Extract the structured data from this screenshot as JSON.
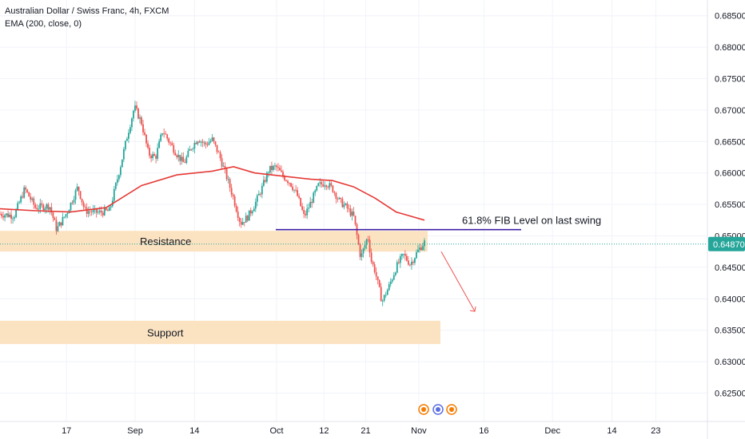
{
  "legend": {
    "title": "Australian Dollar / Swiss Franc, 4h, FXCM",
    "indicator": "EMA (200, close, 0)"
  },
  "colors": {
    "up": "#26a69a",
    "down": "#ef5350",
    "ema": "#e53935",
    "fib_line": "#3f1fa6",
    "zone": "#fbe3c2",
    "grid": "#f0f3fa",
    "price_label_bg": "#26a69a",
    "arrow": "#ef5350"
  },
  "chart_data": {
    "type": "candlestick",
    "y_axis": {
      "ticks": [
        0.685,
        0.68,
        0.675,
        0.67,
        0.665,
        0.66,
        0.655,
        0.65,
        0.645,
        0.64,
        0.635,
        0.63,
        0.625
      ],
      "tick_labels": [
        "0.68500",
        "0.68000",
        "0.67500",
        "0.67000",
        "0.66500",
        "0.66000",
        "0.65500",
        "0.65000",
        "0.64500",
        "0.64000",
        "0.63500",
        "0.63000",
        "0.62500"
      ],
      "range": [
        0.6205,
        0.6875
      ],
      "position": "right"
    },
    "x_axis": {
      "labels": [
        "17",
        "Sep",
        "14",
        "Oct",
        "12",
        "21",
        "Nov",
        "16",
        "Dec",
        "14",
        "23"
      ],
      "label_fraction": [
        0.094,
        0.191,
        0.275,
        0.391,
        0.458,
        0.517,
        0.592,
        0.684,
        0.781,
        0.865,
        0.927
      ]
    },
    "current_price": "0.64870",
    "current_value": 0.6487,
    "close_path": [
      [
        0.0,
        0.6535
      ],
      [
        0.02,
        0.6532
      ],
      [
        0.035,
        0.6575
      ],
      [
        0.05,
        0.6545
      ],
      [
        0.07,
        0.6548
      ],
      [
        0.08,
        0.651
      ],
      [
        0.095,
        0.6538
      ],
      [
        0.11,
        0.6578
      ],
      [
        0.12,
        0.654
      ],
      [
        0.14,
        0.6537
      ],
      [
        0.155,
        0.654
      ],
      [
        0.17,
        0.661
      ],
      [
        0.18,
        0.666
      ],
      [
        0.19,
        0.6705
      ],
      [
        0.2,
        0.668
      ],
      [
        0.21,
        0.663
      ],
      [
        0.22,
        0.6625
      ],
      [
        0.23,
        0.6668
      ],
      [
        0.24,
        0.6648
      ],
      [
        0.25,
        0.663
      ],
      [
        0.26,
        0.6615
      ],
      [
        0.27,
        0.664
      ],
      [
        0.28,
        0.6655
      ],
      [
        0.29,
        0.6645
      ],
      [
        0.3,
        0.6653
      ],
      [
        0.31,
        0.6628
      ],
      [
        0.32,
        0.6595
      ],
      [
        0.33,
        0.656
      ],
      [
        0.34,
        0.652
      ],
      [
        0.35,
        0.653
      ],
      [
        0.36,
        0.655
      ],
      [
        0.37,
        0.6575
      ],
      [
        0.38,
        0.6605
      ],
      [
        0.39,
        0.661
      ],
      [
        0.4,
        0.6595
      ],
      [
        0.41,
        0.6585
      ],
      [
        0.42,
        0.6565
      ],
      [
        0.43,
        0.653
      ],
      [
        0.44,
        0.6555
      ],
      [
        0.45,
        0.658
      ],
      [
        0.46,
        0.6585
      ],
      [
        0.47,
        0.6575
      ],
      [
        0.48,
        0.6555
      ],
      [
        0.49,
        0.6545
      ],
      [
        0.5,
        0.653
      ],
      [
        0.51,
        0.6465
      ],
      [
        0.52,
        0.65
      ],
      [
        0.525,
        0.646
      ],
      [
        0.53,
        0.6445
      ],
      [
        0.54,
        0.6395
      ],
      [
        0.55,
        0.642
      ],
      [
        0.56,
        0.645
      ],
      [
        0.57,
        0.647
      ],
      [
        0.58,
        0.6455
      ],
      [
        0.59,
        0.6475
      ],
      [
        0.6,
        0.649
      ]
    ],
    "ema_path": [
      [
        0.0,
        0.6543
      ],
      [
        0.05,
        0.654
      ],
      [
        0.1,
        0.6538
      ],
      [
        0.15,
        0.6545
      ],
      [
        0.2,
        0.658
      ],
      [
        0.25,
        0.6597
      ],
      [
        0.3,
        0.6603
      ],
      [
        0.33,
        0.661
      ],
      [
        0.36,
        0.66
      ],
      [
        0.4,
        0.6595
      ],
      [
        0.44,
        0.659
      ],
      [
        0.47,
        0.6588
      ],
      [
        0.5,
        0.6578
      ],
      [
        0.53,
        0.656
      ],
      [
        0.56,
        0.6538
      ],
      [
        0.6,
        0.6525
      ]
    ],
    "annotations": {
      "resistance": {
        "label": "Resistance",
        "y_top": 0.6508,
        "y_bottom": 0.6475
      },
      "support": {
        "label": "Support",
        "y_top": 0.6365,
        "y_bottom": 0.6328
      },
      "fib": {
        "label": "61.8% FIB Level on last swing",
        "y": 0.651
      },
      "arrow": {
        "from_y": 0.6475,
        "to_y": 0.638
      }
    }
  }
}
